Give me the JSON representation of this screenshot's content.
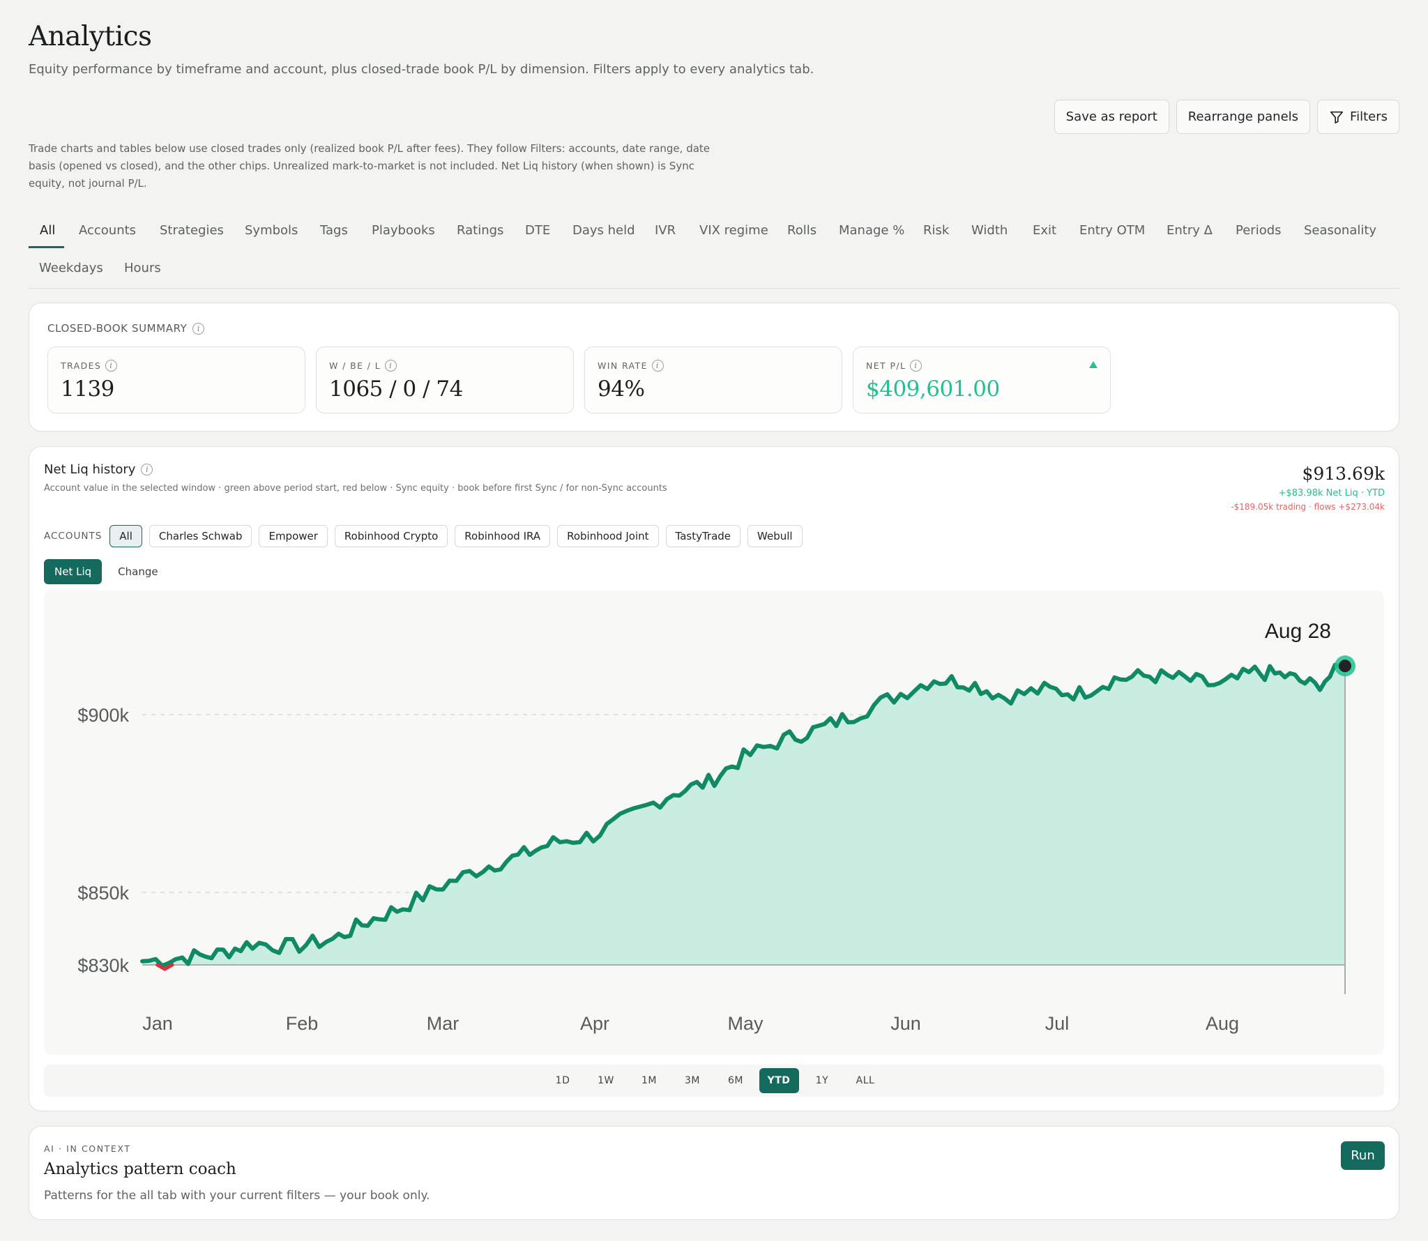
{
  "page": {
    "title": "Analytics",
    "subtitle": "Equity performance by timeframe and account, plus closed-trade book P/L by dimension. Filters apply to every analytics tab.",
    "disclaimer": "Trade charts and tables below use closed trades only (realized book P/L after fees). They follow Filters: accounts, date range, date basis (opened vs closed), and the other chips. Unrealized mark-to-market is not included. Net Liq history (when shown) is Sync equity, not journal P/L."
  },
  "actions": {
    "save_report": "Save as report",
    "rearrange": "Rearrange panels",
    "filters": "Filters"
  },
  "tabs": [
    "All",
    "Accounts",
    "Strategies",
    "Symbols",
    "Tags",
    "Playbooks",
    "Ratings",
    "DTE",
    "Days held",
    "IVR",
    "VIX regime",
    "Rolls",
    "Manage %",
    "Risk",
    "Width",
    "Exit",
    "Entry OTM",
    "Entry Δ",
    "Periods",
    "Seasonality",
    "Weekdays",
    "Hours"
  ],
  "active_tab": "All",
  "summary": {
    "title": "CLOSED-BOOK SUMMARY",
    "trades_label": "TRADES",
    "trades_value": "1139",
    "wbl_label": "W / BE / L",
    "wbl_value": "1065 / 0 / 74",
    "winrate_label": "WIN RATE",
    "winrate_value": "94%",
    "netpl_label": "NET P/L",
    "netpl_value": "$409,601.00"
  },
  "netliq": {
    "title": "Net Liq history",
    "description": "Account value in the selected window · green above period start, red below · Sync equity · book before first Sync / for non-Sync accounts",
    "value": "$913.69k",
    "change": "+$83.98k Net Liq · YTD",
    "breakdown": "-$189.05k trading · flows +$273.04k",
    "accounts_label": "ACCOUNTS",
    "accounts": [
      "All",
      "Charles Schwab",
      "Empower",
      "Robinhood Crypto",
      "Robinhood IRA",
      "Robinhood Joint",
      "TastyTrade",
      "Webull"
    ],
    "active_account": "All",
    "modes": [
      "Net Liq",
      "Change"
    ],
    "active_mode": "Net Liq",
    "ranges": [
      "1D",
      "1W",
      "1M",
      "3M",
      "6M",
      "YTD",
      "1Y",
      "ALL"
    ],
    "active_range": "YTD"
  },
  "chart_data": {
    "type": "area",
    "y_tick_labels": [
      "$900k",
      "$850k",
      "$830k"
    ],
    "y_ticks": [
      900,
      850,
      830
    ],
    "ylim": [
      830,
      920
    ],
    "x_tick_labels": [
      "Jan",
      "Feb",
      "Mar",
      "Apr",
      "May",
      "Jun",
      "Jul",
      "Aug"
    ],
    "hover_label": "Aug 28",
    "baseline": 830,
    "colors": {
      "line": "#0f8a64",
      "fill": "#c9ede0",
      "below": "#d8323a"
    },
    "series": [
      {
        "x_day": [
          0,
          8,
          15,
          22,
          30,
          38,
          45,
          52,
          60,
          68,
          75,
          82,
          90,
          98,
          106,
          113,
          120,
          128,
          135,
          142,
          150,
          158,
          165,
          172,
          180,
          187,
          194,
          201,
          208,
          215,
          222,
          228,
          234,
          240
        ],
        "values": [
          831,
          832,
          833,
          836,
          835,
          837,
          842,
          846,
          852,
          857,
          860,
          864,
          866,
          872,
          878,
          881,
          888,
          893,
          896,
          900,
          905,
          910,
          909,
          905,
          907,
          906,
          910,
          911,
          910,
          908,
          912,
          911,
          908,
          913.69
        ]
      }
    ]
  }
}
